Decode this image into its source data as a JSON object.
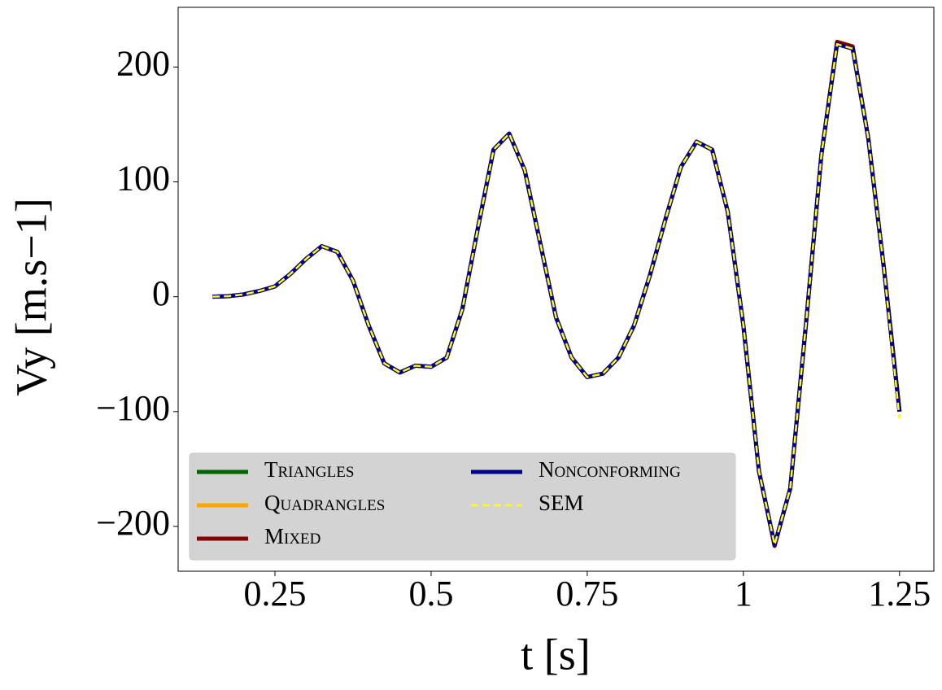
{
  "chart_data": {
    "type": "line",
    "xlabel": "t    [s]",
    "ylabel": "Vy   [m.s−1]",
    "x": [
      0.15,
      0.175,
      0.2,
      0.225,
      0.25,
      0.275,
      0.3,
      0.325,
      0.35,
      0.375,
      0.4,
      0.425,
      0.45,
      0.475,
      0.5,
      0.525,
      0.55,
      0.575,
      0.6,
      0.625,
      0.65,
      0.675,
      0.7,
      0.725,
      0.75,
      0.775,
      0.8,
      0.825,
      0.85,
      0.875,
      0.9,
      0.925,
      0.95,
      0.975,
      1.0,
      1.025,
      1.05,
      1.075,
      1.1,
      1.125,
      1.15,
      1.175,
      1.2,
      1.225,
      1.25
    ],
    "series": [
      {
        "name": "Triangles",
        "color": "#006400",
        "values": [
          0,
          0.5,
          2,
          5,
          9,
          20,
          33,
          44,
          39,
          14,
          -25,
          -58,
          -66,
          -60,
          -61,
          -53,
          -11,
          60,
          128,
          142,
          110,
          46,
          -18,
          -53,
          -70,
          -67,
          -53,
          -25,
          18,
          67,
          113,
          135,
          128,
          74,
          -25,
          -152,
          -216,
          -167,
          -25,
          124,
          220,
          216,
          138,
          25,
          -100
        ]
      },
      {
        "name": "Quadrangles",
        "color": "#ffa500",
        "values": [
          0,
          0.5,
          2,
          5,
          9,
          20,
          33,
          44,
          39,
          14,
          -25,
          -58,
          -66,
          -60,
          -61,
          -53,
          -11,
          60,
          128,
          142,
          110,
          46,
          -18,
          -53,
          -70,
          -67,
          -53,
          -25,
          18,
          67,
          113,
          135,
          128,
          74,
          -25,
          -152,
          -216,
          -167,
          -25,
          124,
          220,
          216,
          138,
          25,
          -100
        ]
      },
      {
        "name": "Mixed",
        "color": "#8b0000",
        "values": [
          0,
          0.5,
          2,
          5,
          9,
          20,
          33,
          44,
          39,
          14,
          -25,
          -58,
          -66,
          -60,
          -61,
          -53,
          -11,
          60,
          128,
          142,
          110,
          46,
          -18,
          -53,
          -70,
          -67,
          -53,
          -25,
          18,
          67,
          113,
          135,
          128,
          74,
          -25,
          -152,
          -217,
          -167,
          -25,
          124,
          222,
          218,
          138,
          25,
          -100
        ]
      },
      {
        "name": "Nonconforming",
        "color": "#00008b",
        "values": [
          0,
          0.5,
          2,
          5,
          9,
          20,
          33,
          44,
          39,
          14,
          -25,
          -58,
          -66,
          -60,
          -61,
          -53,
          -11,
          60,
          128,
          142,
          110,
          46,
          -18,
          -53,
          -70,
          -67,
          -53,
          -25,
          18,
          67,
          113,
          135,
          128,
          74,
          -25,
          -152,
          -216,
          -167,
          -25,
          124,
          220,
          216,
          138,
          25,
          -100
        ]
      },
      {
        "name": "SEM",
        "color": "#ffff00",
        "dashed": true,
        "values": [
          0,
          0.5,
          2,
          5,
          9,
          20,
          33,
          44,
          39,
          14,
          -25,
          -58,
          -66,
          -60,
          -61,
          -53,
          -11,
          60,
          128,
          142,
          110,
          46,
          -18,
          -53,
          -70,
          -67,
          -53,
          -25,
          18,
          67,
          113,
          135,
          128,
          74,
          -25,
          -152,
          -216,
          -167,
          -25,
          124,
          220,
          216,
          138,
          25,
          -106
        ]
      }
    ],
    "xlim": [
      0.095,
      1.305
    ],
    "ylim": [
      -239,
      252
    ],
    "xticks": [
      0.25,
      0.5,
      0.75,
      1,
      1.25
    ],
    "yticks": [
      {
        "value": -200,
        "label": "−200"
      },
      {
        "value": -100,
        "label": "−100"
      },
      0,
      100,
      200
    ],
    "legend": "lower left"
  }
}
